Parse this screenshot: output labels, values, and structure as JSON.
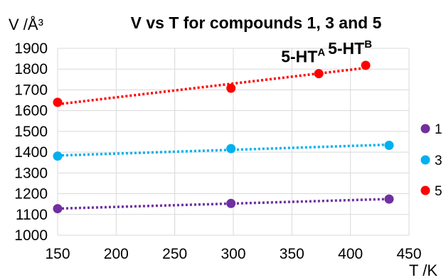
{
  "chart_data": {
    "type": "scatter",
    "title": "V vs T for compounds 1, 3 and 5",
    "ylabel": "V /Å³",
    "xlabel": "T /K",
    "xlim": [
      150,
      450
    ],
    "ylim": [
      1000,
      1900
    ],
    "xticks": [
      "150",
      "200",
      "250",
      "300",
      "350",
      "400",
      "450"
    ],
    "yticks": [
      "1000",
      "1100",
      "1200",
      "1300",
      "1400",
      "1500",
      "1600",
      "1700",
      "1800",
      "1900"
    ],
    "grid": true,
    "legend_position": "right",
    "series": [
      {
        "name": "1",
        "color": "#7030a0",
        "trendline": "dotted",
        "points": [
          {
            "x": 150,
            "y": 1128
          },
          {
            "x": 298,
            "y": 1153
          },
          {
            "x": 433,
            "y": 1174
          }
        ]
      },
      {
        "name": "3",
        "color": "#00b0f0",
        "trendline": "dotted",
        "points": [
          {
            "x": 150,
            "y": 1381
          },
          {
            "x": 298,
            "y": 1417
          },
          {
            "x": 433,
            "y": 1433
          }
        ]
      },
      {
        "name": "5",
        "color": "#ff0000",
        "trendline": "dotted",
        "points": [
          {
            "x": 150,
            "y": 1640
          },
          {
            "x": 298,
            "y": 1708
          },
          {
            "x": 373,
            "y": 1778
          },
          {
            "x": 413,
            "y": 1818
          }
        ]
      }
    ],
    "annotations": [
      {
        "base": "5-HT",
        "sup": "A",
        "series": "5",
        "point_index": 2
      },
      {
        "base": "5-HT",
        "sup": "B",
        "series": "5",
        "point_index": 3
      }
    ]
  }
}
